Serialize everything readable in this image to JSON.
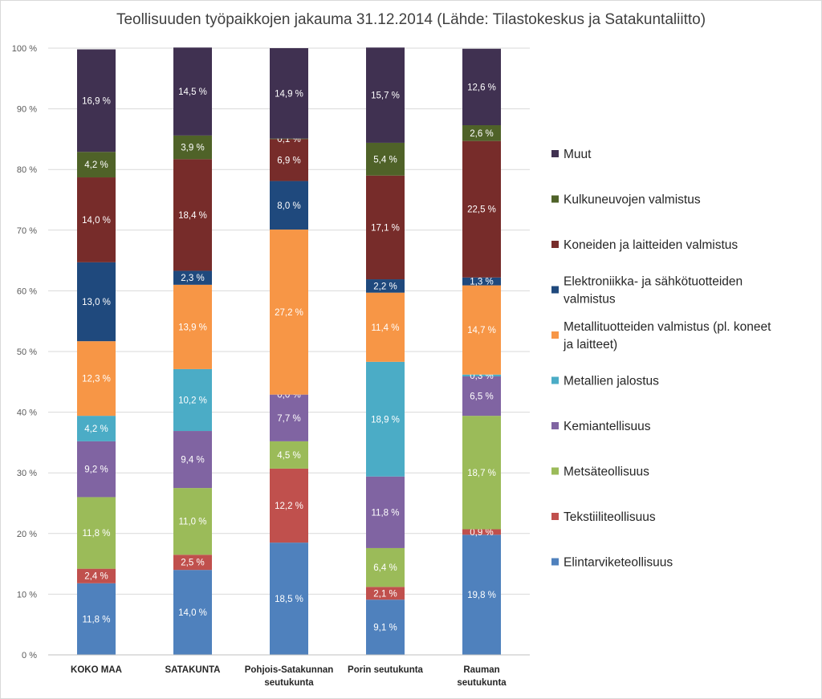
{
  "chart_data": {
    "type": "bar",
    "stacked": true,
    "title": "Teollisuuden työpaikkojen jakauma 31.12.2014 (Lähde: Tilastokeskus ja Satakuntaliitto)",
    "ylim": [
      0,
      100
    ],
    "y_ticks": [
      "0 %",
      "10 %",
      "20 %",
      "30 %",
      "40 %",
      "50 %",
      "60 %",
      "70 %",
      "80 %",
      "90 %",
      "100 %"
    ],
    "grid": true,
    "legend_position": "right",
    "categories": [
      [
        "KOKO MAA"
      ],
      [
        "SATAKUNTA"
      ],
      [
        "Pohjois-Satakunnan",
        "seutukunta"
      ],
      [
        "Porin seutukunta"
      ],
      [
        "Rauman",
        "seutukunta"
      ]
    ],
    "series": [
      {
        "name": "Elintarviketeollisuus",
        "color": "#4f81bd",
        "values": [
          11.8,
          14.0,
          18.5,
          9.1,
          19.8
        ],
        "labels": [
          "11,8 %",
          "14,0 %",
          "18,5 %",
          "9,1 %",
          "19,8 %"
        ]
      },
      {
        "name": "Tekstiiliteollisuus",
        "color": "#c0504d",
        "values": [
          2.4,
          2.5,
          12.2,
          2.1,
          0.9
        ],
        "labels": [
          "2,4 %",
          "2,5 %",
          "12,2 %",
          "2,1 %",
          "0,9 %"
        ]
      },
      {
        "name": "Metsäteollisuus",
        "color": "#9bbb59",
        "values": [
          11.8,
          11.0,
          4.5,
          6.4,
          18.7
        ],
        "labels": [
          "11,8 %",
          "11,0 %",
          "4,5 %",
          "6,4 %",
          "18,7 %"
        ]
      },
      {
        "name": "Kemiantellisuus",
        "color": "#8064a2",
        "values": [
          9.2,
          9.4,
          7.7,
          11.8,
          6.5
        ],
        "labels": [
          "9,2 %",
          "9,4 %",
          "7,7 %",
          "11,8 %",
          "6,5 %"
        ]
      },
      {
        "name": "Metallien jalostus",
        "color": "#4bacc6",
        "values": [
          4.2,
          10.2,
          0.0,
          18.9,
          0.3
        ],
        "labels": [
          "4,2 %",
          "10,2 %",
          "0,0 %",
          "18,9 %",
          "0,3 %"
        ]
      },
      {
        "name": "Metallituotteiden valmistus (pl. koneet ja laitteet)",
        "legend_lines": [
          "Metallituotteiden valmistus (pl. koneet",
          "ja laitteet)"
        ],
        "color": "#f79646",
        "values": [
          12.3,
          13.9,
          27.2,
          11.4,
          14.7
        ],
        "labels": [
          "12,3 %",
          "13,9 %",
          "27,2 %",
          "11,4 %",
          "14,7 %"
        ]
      },
      {
        "name": "Elektroniikka- ja sähkötuotteiden valmistus",
        "legend_lines": [
          "Elektroniikka- ja sähkötuotteiden",
          "valmistus"
        ],
        "color": "#1f497d",
        "values": [
          13.0,
          2.3,
          8.0,
          2.2,
          1.3
        ],
        "labels": [
          "13,0 %",
          "2,3 %",
          "8,0 %",
          "2,2 %",
          "1,3 %"
        ]
      },
      {
        "name": "Koneiden ja laitteiden valmistus",
        "color": "#772c2a",
        "values": [
          14.0,
          18.4,
          6.9,
          17.1,
          22.5
        ],
        "labels": [
          "14,0 %",
          "18,4 %",
          "6,9 %",
          "17,1 %",
          "22,5 %"
        ]
      },
      {
        "name": "Kulkuneuvojen valmistus",
        "color": "#4f6228",
        "values": [
          4.2,
          3.9,
          0.1,
          5.4,
          2.6
        ],
        "labels": [
          "4,2 %",
          "3,9 %",
          "0,1 %",
          "5,4 %",
          "2,6 %"
        ]
      },
      {
        "name": "Muut",
        "color": "#403151",
        "values": [
          16.9,
          14.5,
          14.9,
          15.7,
          12.6
        ],
        "labels": [
          "16,9 %",
          "14,5 %",
          "14,9 %",
          "15,7 %",
          "12,6 %"
        ]
      }
    ]
  }
}
